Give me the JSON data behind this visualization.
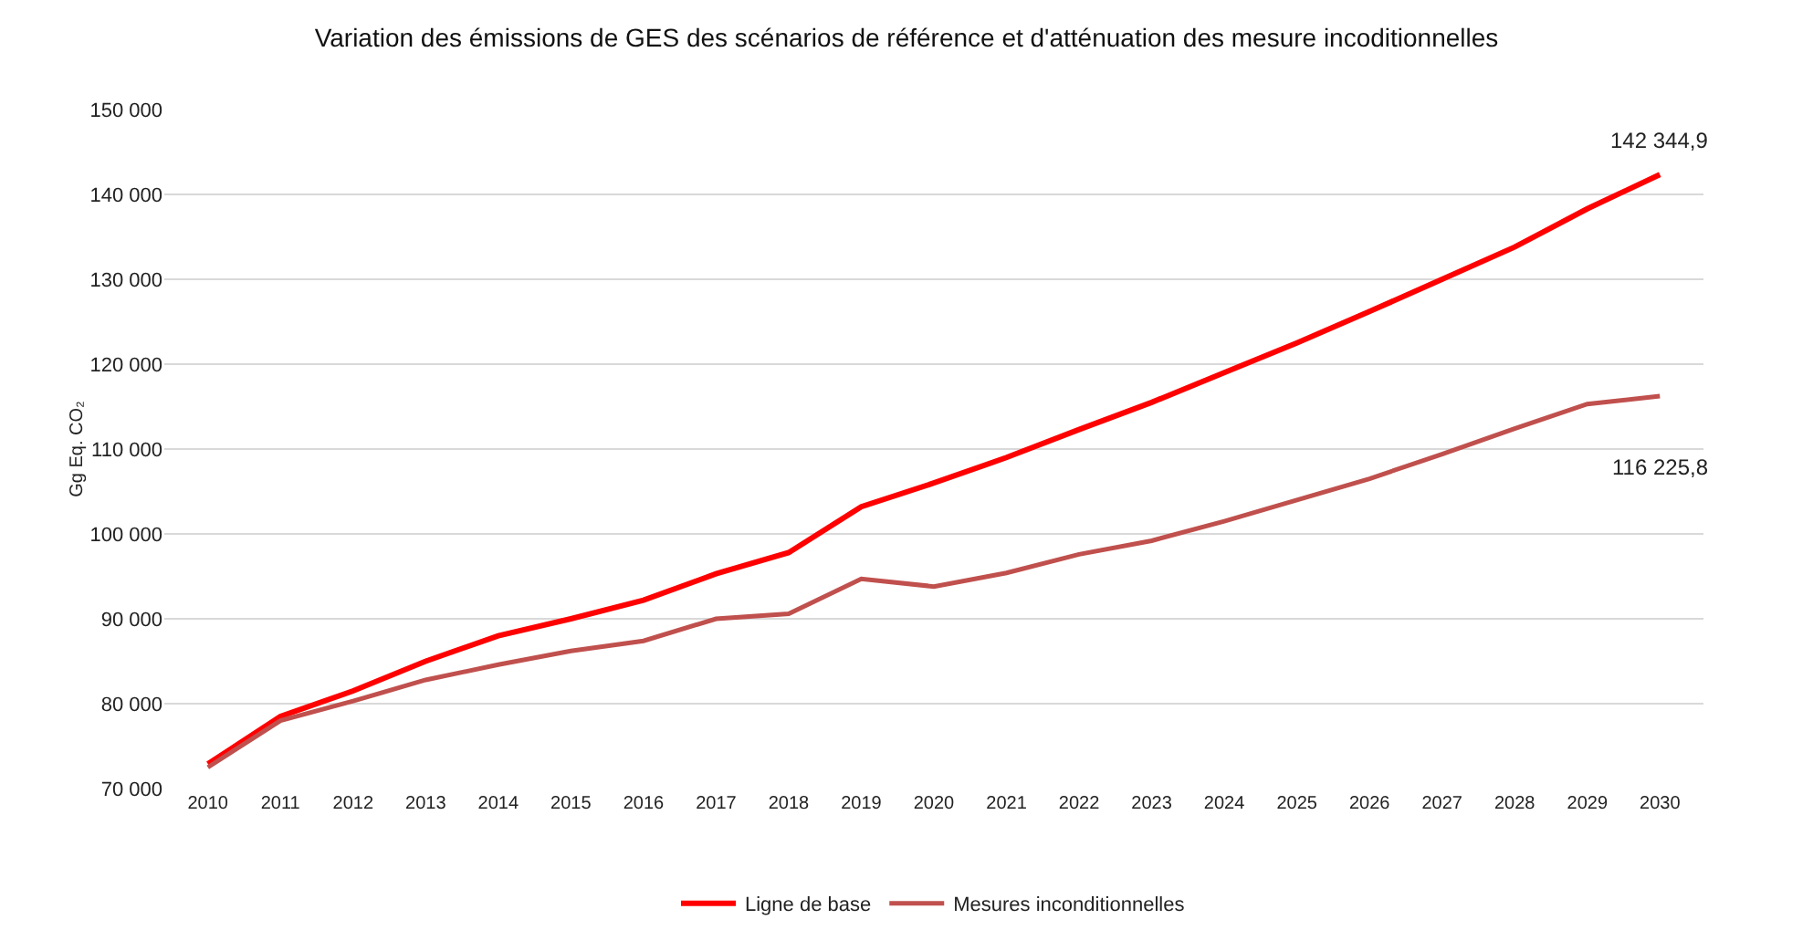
{
  "chart_data": {
    "type": "line",
    "title": "Variation des émissions de GES des scénarios de référence et d'atténuation des mesure incoditionnelles",
    "ylabel": "Gg Eq. CO₂",
    "categories": [
      "2010",
      "2011",
      "2012",
      "2013",
      "2014",
      "2015",
      "2016",
      "2017",
      "2018",
      "2019",
      "2020",
      "2021",
      "2022",
      "2023",
      "2024",
      "2025",
      "2026",
      "2027",
      "2028",
      "2029",
      "2030"
    ],
    "series": [
      {
        "name": "Ligne de base",
        "color": "#ff0000",
        "values": [
          72900,
          78500,
          81500,
          85000,
          88000,
          90000,
          92200,
          95300,
          97800,
          103200,
          106000,
          109000,
          112300,
          115500,
          119000,
          122500,
          126200,
          130000,
          133800,
          138300,
          142344.9
        ],
        "value_labels": [
          null,
          null,
          null,
          null,
          null,
          null,
          null,
          null,
          null,
          null,
          null,
          null,
          null,
          null,
          null,
          null,
          null,
          null,
          null,
          null,
          "142 344,9"
        ]
      },
      {
        "name": "Mesures inconditionnelles",
        "color": "#c0504d",
        "values": [
          72500,
          78000,
          80300,
          82800,
          84600,
          86200,
          87400,
          90000,
          90600,
          94700,
          93800,
          95400,
          97600,
          99200,
          101500,
          104000,
          106500,
          109400,
          112400,
          115300,
          116225.8
        ],
        "value_labels": [
          null,
          null,
          null,
          null,
          null,
          null,
          null,
          null,
          null,
          null,
          null,
          null,
          null,
          null,
          null,
          null,
          null,
          null,
          null,
          null,
          "116 225,8"
        ]
      }
    ],
    "ylim": [
      70000,
      150000
    ],
    "yticks": [
      {
        "value": 70000,
        "label": "70 000"
      },
      {
        "value": 80000,
        "label": "80 000"
      },
      {
        "value": 90000,
        "label": "90 000"
      },
      {
        "value": 100000,
        "label": "100 000"
      },
      {
        "value": 110000,
        "label": "110 000"
      },
      {
        "value": 120000,
        "label": "120 000"
      },
      {
        "value": 130000,
        "label": "130 000"
      },
      {
        "value": 140000,
        "label": "140 000"
      },
      {
        "value": 150000,
        "label": "150 000"
      }
    ],
    "grid": "y",
    "legend": "bottom",
    "marker": "none",
    "line_style": "solid"
  }
}
